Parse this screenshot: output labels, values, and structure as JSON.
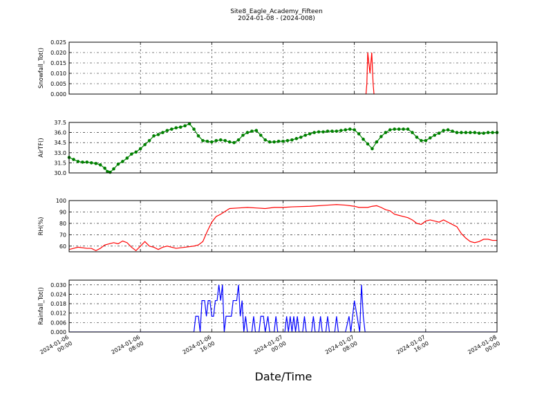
{
  "figure": {
    "title": "Site8_Eagle_Academy_Fifteen",
    "subtitle": "2024-01-08 - (2024-008)",
    "xlabel": "Date/Time",
    "x_tick_labels": [
      [
        "2024-01-06",
        "00:00"
      ],
      [
        "2024-01-06",
        "08:00"
      ],
      [
        "2024-01-06",
        "16:00"
      ],
      [
        "2024-01-07",
        "00:00"
      ],
      [
        "2024-01-07",
        "08:00"
      ],
      [
        "2024-01-07",
        "16:00"
      ],
      [
        "2024-01-08",
        "00:00"
      ]
    ]
  },
  "chart_data": [
    {
      "type": "line",
      "ylabel": "Snowfall_Tot()",
      "x_unit": "hours since 2024-01-06 00:00",
      "xlim": [
        0,
        48
      ],
      "ylim": [
        0,
        0.025
      ],
      "yticks": [
        "0.000",
        "0.005",
        "0.010",
        "0.015",
        "0.020",
        "0.025"
      ],
      "grid": true,
      "series": [
        {
          "color": "#ff0000",
          "marker": "none",
          "points": [
            [
              33.3,
              0
            ],
            [
              33.4,
              0.005
            ],
            [
              33.5,
              0.02
            ],
            [
              33.75,
              0.01
            ],
            [
              33.95,
              0.02
            ],
            [
              34.1,
              0.005
            ],
            [
              34.2,
              0
            ]
          ]
        }
      ]
    },
    {
      "type": "line",
      "ylabel": "AirTF()",
      "xlim": [
        0,
        48
      ],
      "ylim": [
        30,
        37.5
      ],
      "yticks": [
        "30.0",
        "31.5",
        "33.0",
        "34.5",
        "36.0",
        "37.5"
      ],
      "grid": true,
      "series": [
        {
          "color": "#008000",
          "marker": "circle",
          "points": [
            [
              0,
              32.3
            ],
            [
              0.5,
              32.0
            ],
            [
              1,
              31.7
            ],
            [
              1.5,
              31.6
            ],
            [
              2,
              31.6
            ],
            [
              2.5,
              31.5
            ],
            [
              3,
              31.4
            ],
            [
              3.5,
              31.2
            ],
            [
              4,
              30.7
            ],
            [
              4.3,
              30.2
            ],
            [
              4.6,
              30.1
            ],
            [
              5,
              30.6
            ],
            [
              5.5,
              31.3
            ],
            [
              6,
              31.7
            ],
            [
              6.5,
              32.2
            ],
            [
              7,
              32.8
            ],
            [
              7.5,
              33.1
            ],
            [
              8,
              33.6
            ],
            [
              8.5,
              34.2
            ],
            [
              9,
              34.8
            ],
            [
              9.5,
              35.5
            ],
            [
              10,
              35.7
            ],
            [
              10.5,
              36.0
            ],
            [
              11,
              36.3
            ],
            [
              11.5,
              36.5
            ],
            [
              12,
              36.7
            ],
            [
              12.5,
              36.8
            ],
            [
              13,
              37.0
            ],
            [
              13.5,
              37.3
            ],
            [
              14,
              36.5
            ],
            [
              14.5,
              35.5
            ],
            [
              15,
              34.8
            ],
            [
              15.5,
              34.7
            ],
            [
              16,
              34.6
            ],
            [
              16.5,
              34.8
            ],
            [
              17,
              34.9
            ],
            [
              17.5,
              34.8
            ],
            [
              18,
              34.6
            ],
            [
              18.5,
              34.5
            ],
            [
              19,
              34.9
            ],
            [
              19.5,
              35.6
            ],
            [
              20,
              36.0
            ],
            [
              20.5,
              36.2
            ],
            [
              21,
              36.3
            ],
            [
              21.5,
              35.6
            ],
            [
              22,
              34.9
            ],
            [
              22.5,
              34.6
            ],
            [
              23,
              34.6
            ],
            [
              23.5,
              34.7
            ],
            [
              24,
              34.7
            ],
            [
              24.5,
              34.8
            ],
            [
              25,
              34.9
            ],
            [
              25.5,
              35.1
            ],
            [
              26,
              35.3
            ],
            [
              26.5,
              35.6
            ],
            [
              27,
              35.8
            ],
            [
              27.5,
              36.0
            ],
            [
              28,
              36.1
            ],
            [
              28.5,
              36.1
            ],
            [
              29,
              36.2
            ],
            [
              29.5,
              36.2
            ],
            [
              30,
              36.2
            ],
            [
              30.5,
              36.3
            ],
            [
              31,
              36.4
            ],
            [
              31.5,
              36.5
            ],
            [
              32,
              36.4
            ],
            [
              32.5,
              35.8
            ],
            [
              33,
              35.0
            ],
            [
              33.5,
              34.3
            ],
            [
              34,
              33.6
            ],
            [
              34.5,
              34.6
            ],
            [
              35,
              35.4
            ],
            [
              35.5,
              36.0
            ],
            [
              36,
              36.4
            ],
            [
              36.5,
              36.5
            ],
            [
              37,
              36.5
            ],
            [
              37.5,
              36.5
            ],
            [
              38,
              36.5
            ],
            [
              38.5,
              36.0
            ],
            [
              39,
              35.3
            ],
            [
              39.5,
              34.8
            ],
            [
              40,
              34.8
            ],
            [
              40.5,
              35.2
            ],
            [
              41,
              35.6
            ],
            [
              41.5,
              35.9
            ],
            [
              42,
              36.3
            ],
            [
              42.5,
              36.4
            ],
            [
              43,
              36.2
            ],
            [
              43.5,
              36.0
            ],
            [
              44,
              36.0
            ],
            [
              44.5,
              36.0
            ],
            [
              45,
              36.0
            ],
            [
              45.5,
              36.0
            ],
            [
              46,
              35.9
            ],
            [
              46.5,
              35.9
            ],
            [
              47,
              36.0
            ],
            [
              47.5,
              36.0
            ],
            [
              48,
              36.0
            ]
          ]
        }
      ]
    },
    {
      "type": "line",
      "ylabel": "RH(%)",
      "xlim": [
        0,
        48
      ],
      "ylim": [
        55,
        100
      ],
      "yticks": [
        "60",
        "70",
        "80",
        "90",
        "100"
      ],
      "grid": true,
      "series": [
        {
          "color": "#ff0000",
          "marker": "none",
          "points": [
            [
              0,
              57
            ],
            [
              1,
              59
            ],
            [
              2,
              58
            ],
            [
              2.5,
              58
            ],
            [
              3,
              56
            ],
            [
              3.5,
              58
            ],
            [
              4,
              61
            ],
            [
              5,
              63
            ],
            [
              5.5,
              62
            ],
            [
              6,
              64.5
            ],
            [
              6.5,
              63
            ],
            [
              7,
              59
            ],
            [
              7.5,
              56
            ],
            [
              8,
              60
            ],
            [
              8.5,
              64
            ],
            [
              9,
              60
            ],
            [
              9.5,
              59
            ],
            [
              10,
              57
            ],
            [
              10.5,
              59
            ],
            [
              11,
              60
            ],
            [
              12,
              58
            ],
            [
              13,
              59
            ],
            [
              14,
              60
            ],
            [
              14.5,
              61
            ],
            [
              15,
              64
            ],
            [
              15.5,
              73
            ],
            [
              16,
              81
            ],
            [
              16.5,
              86
            ],
            [
              17,
              88
            ],
            [
              18,
              93
            ],
            [
              19,
              93.5
            ],
            [
              20,
              94
            ],
            [
              21,
              93.5
            ],
            [
              22,
              93
            ],
            [
              23,
              94
            ],
            [
              24,
              94
            ],
            [
              25,
              94.5
            ],
            [
              27,
              95
            ],
            [
              29,
              96
            ],
            [
              30,
              96.5
            ],
            [
              31,
              96
            ],
            [
              32,
              95
            ],
            [
              32.5,
              94
            ],
            [
              33,
              94
            ],
            [
              33.5,
              94
            ],
            [
              34,
              95
            ],
            [
              34.5,
              95.5
            ],
            [
              35,
              94
            ],
            [
              35.5,
              92
            ],
            [
              36,
              91
            ],
            [
              36.5,
              88
            ],
            [
              37,
              87
            ],
            [
              37.5,
              86
            ],
            [
              38,
              85
            ],
            [
              38.5,
              83
            ],
            [
              39,
              80
            ],
            [
              39.5,
              79
            ],
            [
              40,
              82
            ],
            [
              40.5,
              83
            ],
            [
              41,
              82
            ],
            [
              41.5,
              81
            ],
            [
              42,
              83
            ],
            [
              42.5,
              81
            ],
            [
              43,
              79
            ],
            [
              43.5,
              77
            ],
            [
              44,
              71
            ],
            [
              44.5,
              67
            ],
            [
              45,
              64
            ],
            [
              45.5,
              63
            ],
            [
              46,
              64
            ],
            [
              46.5,
              66
            ],
            [
              47,
              66
            ],
            [
              47.5,
              65
            ],
            [
              48,
              65
            ]
          ]
        }
      ]
    },
    {
      "type": "line",
      "ylabel": "Rainfall_Tot()",
      "xlim": [
        0,
        48
      ],
      "ylim": [
        0,
        0.033
      ],
      "yticks": [
        "0.000",
        "0.006",
        "0.012",
        "0.018",
        "0.024",
        "0.030"
      ],
      "grid": true,
      "series": [
        {
          "color": "#0000ff",
          "marker": "none",
          "points": [
            [
              0,
              0
            ],
            [
              14,
              0
            ],
            [
              14.2,
              0.01
            ],
            [
              14.5,
              0.01
            ],
            [
              14.7,
              0
            ],
            [
              14.9,
              0.02
            ],
            [
              15.2,
              0.02
            ],
            [
              15.4,
              0.01
            ],
            [
              15.6,
              0.02
            ],
            [
              15.8,
              0.02
            ],
            [
              16,
              0.01
            ],
            [
              16.2,
              0.01
            ],
            [
              16.4,
              0.02
            ],
            [
              16.6,
              0.02
            ],
            [
              16.8,
              0.03
            ],
            [
              17,
              0.02
            ],
            [
              17.2,
              0.03
            ],
            [
              17.4,
              0
            ],
            [
              17.6,
              0.01
            ],
            [
              18,
              0.01
            ],
            [
              18.2,
              0.01
            ],
            [
              18.4,
              0.02
            ],
            [
              18.8,
              0.02
            ],
            [
              19,
              0.03
            ],
            [
              19.2,
              0.01
            ],
            [
              19.4,
              0.02
            ],
            [
              19.6,
              0
            ],
            [
              19.8,
              0.01
            ],
            [
              20,
              0
            ],
            [
              20.5,
              0
            ],
            [
              20.7,
              0.01
            ],
            [
              20.9,
              0
            ],
            [
              21.3,
              0
            ],
            [
              21.5,
              0.01
            ],
            [
              21.8,
              0.01
            ],
            [
              22,
              0
            ],
            [
              22.3,
              0.01
            ],
            [
              22.5,
              0
            ],
            [
              23,
              0
            ],
            [
              23.2,
              0.01
            ],
            [
              23.4,
              0
            ],
            [
              24.2,
              0
            ],
            [
              24.4,
              0.01
            ],
            [
              24.6,
              0
            ],
            [
              24.8,
              0.01
            ],
            [
              25,
              0
            ],
            [
              25.2,
              0.01
            ],
            [
              25.4,
              0
            ],
            [
              25.6,
              0.01
            ],
            [
              25.8,
              0
            ],
            [
              26.2,
              0
            ],
            [
              26.4,
              0.01
            ],
            [
              26.6,
              0
            ],
            [
              27.2,
              0
            ],
            [
              27.4,
              0.01
            ],
            [
              27.6,
              0
            ],
            [
              28,
              0
            ],
            [
              28.2,
              0.01
            ],
            [
              28.4,
              0
            ],
            [
              28.8,
              0
            ],
            [
              29,
              0.01
            ],
            [
              29.2,
              0
            ],
            [
              29.8,
              0
            ],
            [
              30,
              0.01
            ],
            [
              30.2,
              0
            ],
            [
              31,
              0
            ],
            [
              31.4,
              0.01
            ],
            [
              31.6,
              0
            ],
            [
              32,
              0.02
            ],
            [
              32.3,
              0.01
            ],
            [
              32.6,
              0
            ],
            [
              32.8,
              0.03
            ],
            [
              33,
              0.01
            ],
            [
              33.2,
              0
            ],
            [
              48,
              0
            ]
          ]
        }
      ]
    }
  ]
}
